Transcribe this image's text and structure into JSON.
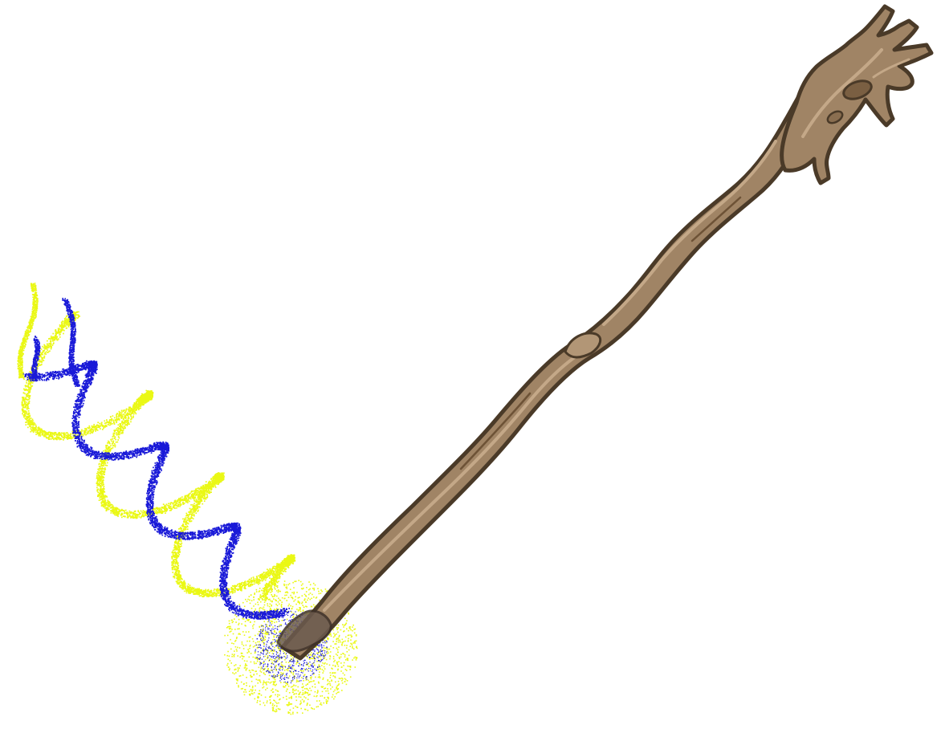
{
  "scene": {
    "background": "#ffffff",
    "staff": {
      "name": "wooden-staff",
      "colors": {
        "wood": "#a08465",
        "wood_light": "#c4a888",
        "wood_dark": "#6d5236",
        "outline": "#4a3a28",
        "tip": "#6b5a4e"
      }
    },
    "magic_effect": {
      "name": "double-helix-sparkle",
      "colors": {
        "yellow": "#eaf815",
        "blue": "#1a1ad8"
      }
    }
  }
}
